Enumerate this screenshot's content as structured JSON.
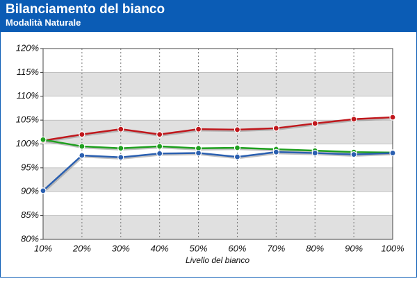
{
  "chart_data": {
    "type": "line",
    "title": "Bilanciamento del bianco",
    "subtitle": "Modalità Naturale",
    "x_label": "Livello del bianco",
    "categories": [
      "10%",
      "20%",
      "30%",
      "40%",
      "50%",
      "60%",
      "70%",
      "80%",
      "90%",
      "100%"
    ],
    "series": [
      {
        "color": "#c0171c",
        "values": [
          100.7,
          102.0,
          103.1,
          102.0,
          103.1,
          103.0,
          103.3,
          104.3,
          105.2,
          105.6
        ]
      },
      {
        "color": "#1fa01f",
        "values": [
          100.9,
          99.5,
          99.1,
          99.5,
          99.1,
          99.2,
          98.9,
          98.6,
          98.3,
          98.2
        ]
      },
      {
        "color": "#2a5fb0",
        "values": [
          90.2,
          97.6,
          97.2,
          98.0,
          98.1,
          97.3,
          98.3,
          98.1,
          97.8,
          98.1
        ]
      }
    ],
    "ylim": [
      80,
      120
    ],
    "yticks": [
      {
        "value": 80,
        "label": "80%"
      },
      {
        "value": 85,
        "label": "85%"
      },
      {
        "value": 90,
        "label": "90%"
      },
      {
        "value": 95,
        "label": "95%"
      },
      {
        "value": 100,
        "label": "100%"
      },
      {
        "value": 105,
        "label": "105%"
      },
      {
        "value": 110,
        "label": "110%"
      },
      {
        "value": 115,
        "label": "115%"
      },
      {
        "value": 120,
        "label": "120%"
      }
    ],
    "grid": true
  }
}
